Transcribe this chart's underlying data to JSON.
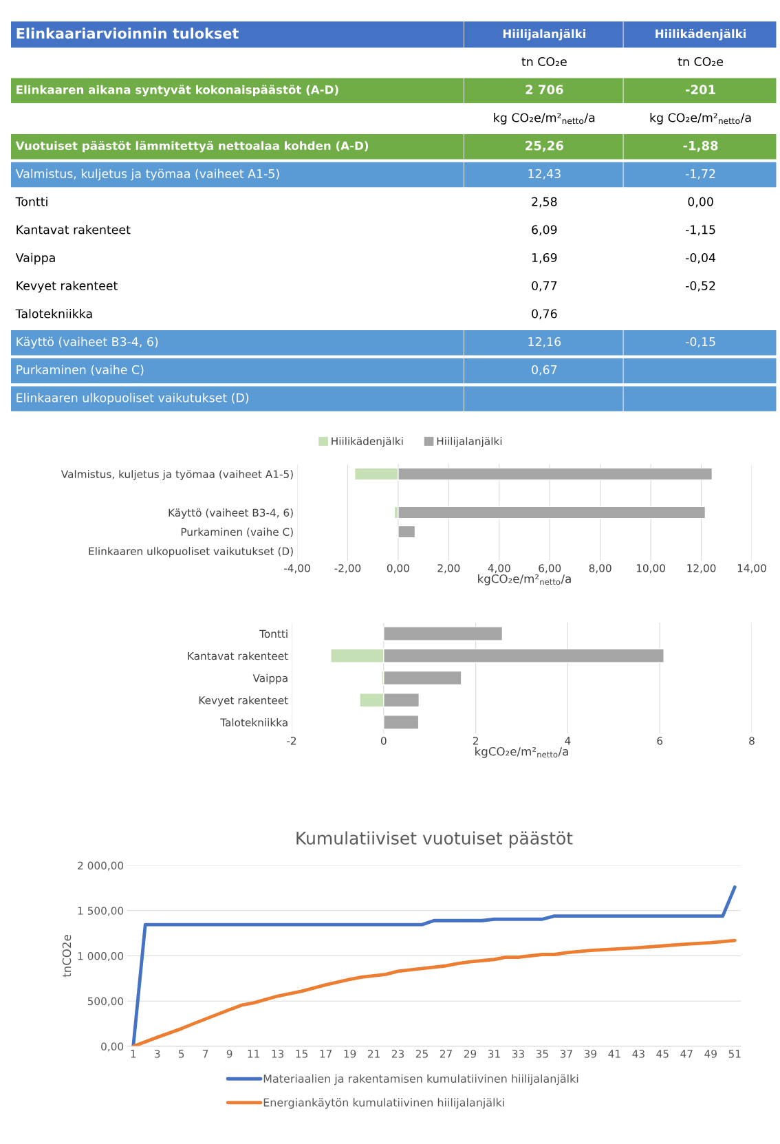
{
  "chart_data": [
    {
      "type": "other",
      "title": "Elinkaariarvioinnin tulokset",
      "color": "#4472c4",
      "categories": [
        "Hiilijalanjälki",
        "Hiilikädenjälki"
      ],
      "y_categories": [
        null,
        "Elinkaaren aikana syntyvät kokonaispäästöt (A-D)",
        null,
        "Vuotuiset päästöt lämmitettyä nettoalaa kohden (A-D)",
        "Valmistus, kuljetus ja työmaa (vaiheet A1-5)",
        "Tontti",
        "Kantavat rakenteet",
        "Vaippa",
        "Kevyet rakenteet",
        "Talotekniikka",
        "Käyttö (vaiheet B3-4, 6)",
        "Purkaminen (vaihe C)",
        "Elinkaaren ulkopuoliset vaikutukset (D)"
      ],
      "colors": [
        null,
        "#70ad47",
        null,
        "#70ad47",
        "#5b9bd5",
        null,
        null,
        null,
        null,
        null,
        "#5b9bd5",
        "#5b9bd5",
        "#5b9bd5"
      ],
      "cell_labels": [
        [
          "tn CO₂e",
          "tn CO₂e"
        ],
        [
          "2 706",
          "-201"
        ],
        [
          "kg CO₂e/m²$_{netto}$/a",
          "kg CO₂e/m²$_{netto}$/a"
        ],
        [
          "25,26",
          "-1,88"
        ],
        [
          "12,43",
          "-1,72"
        ],
        [
          "2,58",
          "0,00"
        ],
        [
          "6,09",
          "-1,15"
        ],
        [
          "1,69",
          "-0,04"
        ],
        [
          "0,77",
          "-0,52"
        ],
        [
          "0,76",
          null
        ],
        [
          "12,16",
          "-0,15"
        ],
        [
          "0,67",
          null
        ],
        [
          null,
          null
        ]
      ]
    },
    {
      "type": "bar",
      "orientation": "horizontal",
      "stacked": true,
      "categories": [
        "Valmistus, kuljetus ja työmaa (vaiheet A1-5)",
        null,
        "Käyttö (vaiheet B3-4, 6)",
        "Purkaminen (vaihe C)",
        "Elinkaaren ulkopuoliset vaikutukset (D)"
      ],
      "series": [
        {
          "name": "Hiilikädenjälki",
          "color": "#c5e0b4",
          "values": [
            -1.72,
            null,
            -0.15,
            null,
            null
          ]
        },
        {
          "name": "Hiilijalanjälki",
          "color": "#a5a5a5",
          "values": [
            12.43,
            null,
            12.16,
            0.67,
            null
          ]
        }
      ],
      "xlim": [
        -4,
        14
      ],
      "xticks": [
        {
          "value": -4,
          "label": "-4,00"
        },
        {
          "value": -2,
          "label": "-2,00"
        },
        {
          "value": 0,
          "label": "0,00"
        },
        {
          "value": 2,
          "label": "2,00"
        },
        {
          "value": 4,
          "label": "4,00"
        },
        {
          "value": 6,
          "label": "6,00"
        },
        {
          "value": 8,
          "label": "8,00"
        },
        {
          "value": 10,
          "label": "10,00"
        },
        {
          "value": 12,
          "label": "12,00"
        },
        {
          "value": 14,
          "label": "14,00"
        }
      ],
      "xlabel": "kgCO₂e/m²$_{netto}$/a",
      "grid": "x",
      "legend": "top"
    },
    {
      "type": "bar",
      "orientation": "horizontal",
      "stacked": true,
      "categories": [
        "Tontti",
        "Kantavat rakenteet",
        "Vaippa",
        "Kevyet rakenteet",
        "Talotekniikka"
      ],
      "series": [
        {
          "color": "#c5e0b4",
          "values": [
            null,
            -1.15,
            -0.04,
            -0.52,
            null
          ]
        },
        {
          "color": "#a5a5a5",
          "values": [
            2.58,
            6.09,
            1.69,
            0.77,
            0.76
          ]
        }
      ],
      "xlim": [
        -2,
        8
      ],
      "xticks": [
        -2,
        0,
        2,
        4,
        6,
        8
      ],
      "xlabel": "kgCO₂e/m²$_{netto}$/a",
      "grid": "x"
    },
    {
      "type": "line",
      "title": "Kumulatiiviset vuotuiset päästöt",
      "ylabel": "tnCO2e",
      "series": [
        {
          "name": "Materiaalien ja rakentamisen kumulatiivinen hiilijalanjälki",
          "color": "#4472c4",
          "x": [
            1,
            2,
            25,
            26,
            30,
            31,
            35,
            36,
            50,
            51
          ],
          "values": [
            0,
            1345,
            1345,
            1390,
            1390,
            1405,
            1405,
            1440,
            1440,
            1760
          ]
        },
        {
          "name": "Energiankäytön kumulatiivinen hiilijalanjälki",
          "color": "#ed7d31",
          "x": [
            1,
            3,
            5,
            6,
            9,
            10,
            11,
            13,
            15,
            17,
            19,
            20,
            21,
            22,
            23,
            25,
            27,
            28,
            29,
            31,
            32,
            33,
            35,
            36,
            37,
            39,
            41,
            43,
            45,
            47,
            49,
            51
          ],
          "values": [
            0,
            100,
            195,
            250,
            405,
            455,
            480,
            555,
            610,
            680,
            740,
            765,
            780,
            795,
            830,
            860,
            890,
            915,
            935,
            960,
            985,
            985,
            1015,
            1015,
            1035,
            1060,
            1075,
            1090,
            1110,
            1130,
            1145,
            1170
          ]
        }
      ],
      "xlim": [
        0.5,
        51.5
      ],
      "xticks": [
        1,
        3,
        5,
        7,
        9,
        11,
        13,
        15,
        17,
        19,
        21,
        23,
        25,
        27,
        29,
        31,
        33,
        35,
        37,
        39,
        41,
        43,
        45,
        47,
        49,
        51
      ],
      "ylim": [
        0,
        2000
      ],
      "yticks": [
        {
          "value": 0,
          "label": "0,00"
        },
        {
          "value": 500,
          "label": "500,00"
        },
        {
          "value": 1000,
          "label": "1 000,00"
        },
        {
          "value": 1500,
          "label": "1 500,00"
        },
        {
          "value": 2000,
          "label": "2 000,00"
        }
      ],
      "grid": "y",
      "legend": "bottom",
      "line_style": "solid",
      "marker": "none"
    }
  ]
}
